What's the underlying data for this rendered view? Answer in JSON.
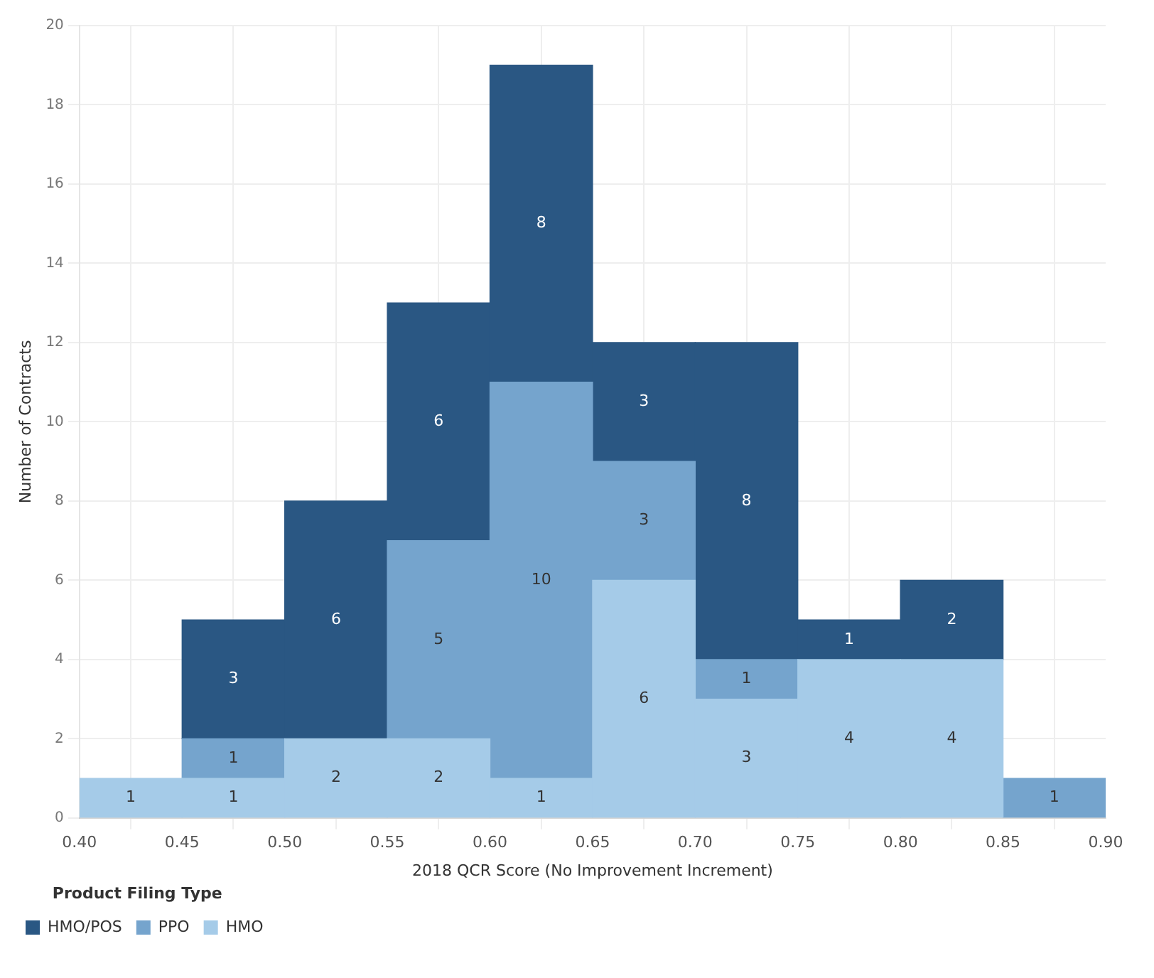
{
  "chart_data": {
    "type": "bar",
    "xlabel": "2018 QCR Score (No Improvement Increment)",
    "ylabel": "Number of Contracts",
    "legend_title": "Product Filing Type",
    "x": [
      0.425,
      0.475,
      0.525,
      0.575,
      0.625,
      0.675,
      0.725,
      0.775,
      0.825,
      0.875
    ],
    "series": [
      {
        "name": "HMO",
        "color": "#a5cbe8",
        "values": [
          1,
          1,
          2,
          2,
          1,
          6,
          3,
          4,
          4,
          null
        ]
      },
      {
        "name": "PPO",
        "color": "#75a4cd",
        "values": [
          null,
          1,
          null,
          5,
          10,
          3,
          1,
          null,
          null,
          1
        ]
      },
      {
        "name": "HMO/POS",
        "color": "#2a5783",
        "values": [
          null,
          3,
          6,
          6,
          8,
          3,
          8,
          1,
          2,
          null
        ]
      }
    ],
    "stacked": true,
    "data_labels": true,
    "xlim": [
      0.4,
      0.9
    ],
    "xticks": [
      {
        "value": 0.4,
        "label": "0.40"
      },
      {
        "value": 0.45,
        "label": "0.45"
      },
      {
        "value": 0.5,
        "label": "0.50"
      },
      {
        "value": 0.55,
        "label": "0.55"
      },
      {
        "value": 0.6,
        "label": "0.60"
      },
      {
        "value": 0.65,
        "label": "0.65"
      },
      {
        "value": 0.7,
        "label": "0.70"
      },
      {
        "value": 0.75,
        "label": "0.75"
      },
      {
        "value": 0.8,
        "label": "0.80"
      },
      {
        "value": 0.85,
        "label": "0.85"
      },
      {
        "value": 0.9,
        "label": "0.90"
      }
    ],
    "ylim": [
      0,
      20
    ],
    "yticks": [
      0,
      2,
      4,
      6,
      8,
      10,
      12,
      14,
      16,
      18,
      20
    ],
    "grid": true,
    "legend": "bottom left"
  }
}
